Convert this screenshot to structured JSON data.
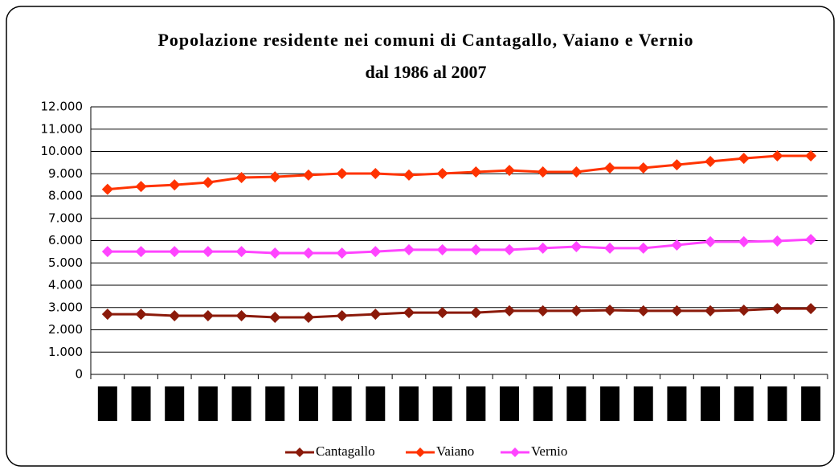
{
  "chart_data": {
    "type": "line",
    "title": [
      "Popolazione residente nei comuni di Cantagallo, Vaiano e Vernio",
      "dal 1986 al 2007"
    ],
    "categories": [
      null,
      null,
      null,
      null,
      null,
      null,
      null,
      null,
      null,
      null,
      null,
      null,
      null,
      null,
      null,
      null,
      null,
      null,
      null,
      null,
      null,
      null
    ],
    "series": [
      {
        "name": "Cantagallo",
        "color": "#8b1a0a",
        "values": [
          2700,
          2700,
          2630,
          2630,
          2630,
          2560,
          2560,
          2630,
          2700,
          2770,
          2770,
          2770,
          2850,
          2850,
          2850,
          2880,
          2850,
          2850,
          2850,
          2880,
          2950,
          2950
        ]
      },
      {
        "name": "Vaiano",
        "color": "#ff3300",
        "values": [
          8300,
          8430,
          8500,
          8610,
          8830,
          8860,
          8940,
          9010,
          9010,
          8940,
          9010,
          9080,
          9150,
          9080,
          9080,
          9260,
          9260,
          9400,
          9550,
          9690,
          9800,
          9800
        ]
      },
      {
        "name": "Vernio",
        "color": "#ff44ff",
        "values": [
          5510,
          5510,
          5510,
          5510,
          5510,
          5440,
          5440,
          5440,
          5510,
          5590,
          5590,
          5590,
          5590,
          5660,
          5730,
          5660,
          5660,
          5800,
          5950,
          5950,
          5980,
          6050
        ]
      }
    ],
    "ylim": [
      0,
      12000
    ],
    "yticks": [
      0,
      {
        "value": 1000,
        "label": "1.000"
      },
      {
        "value": 2000,
        "label": "2.000"
      },
      {
        "value": 3000,
        "label": "3.000"
      },
      {
        "value": 4000,
        "label": "4.000"
      },
      {
        "value": 5000,
        "label": "5.000"
      },
      {
        "value": 6000,
        "label": "6.000"
      },
      {
        "value": 7000,
        "label": "7.000"
      },
      {
        "value": 8000,
        "label": "8.000"
      },
      {
        "value": 9000,
        "label": "9.000"
      },
      {
        "value": 10000,
        "label": "10.000"
      },
      {
        "value": 11000,
        "label": "11.000"
      },
      {
        "value": 12000,
        "label": "12.000"
      }
    ],
    "grid": true,
    "legend": "bottom"
  }
}
